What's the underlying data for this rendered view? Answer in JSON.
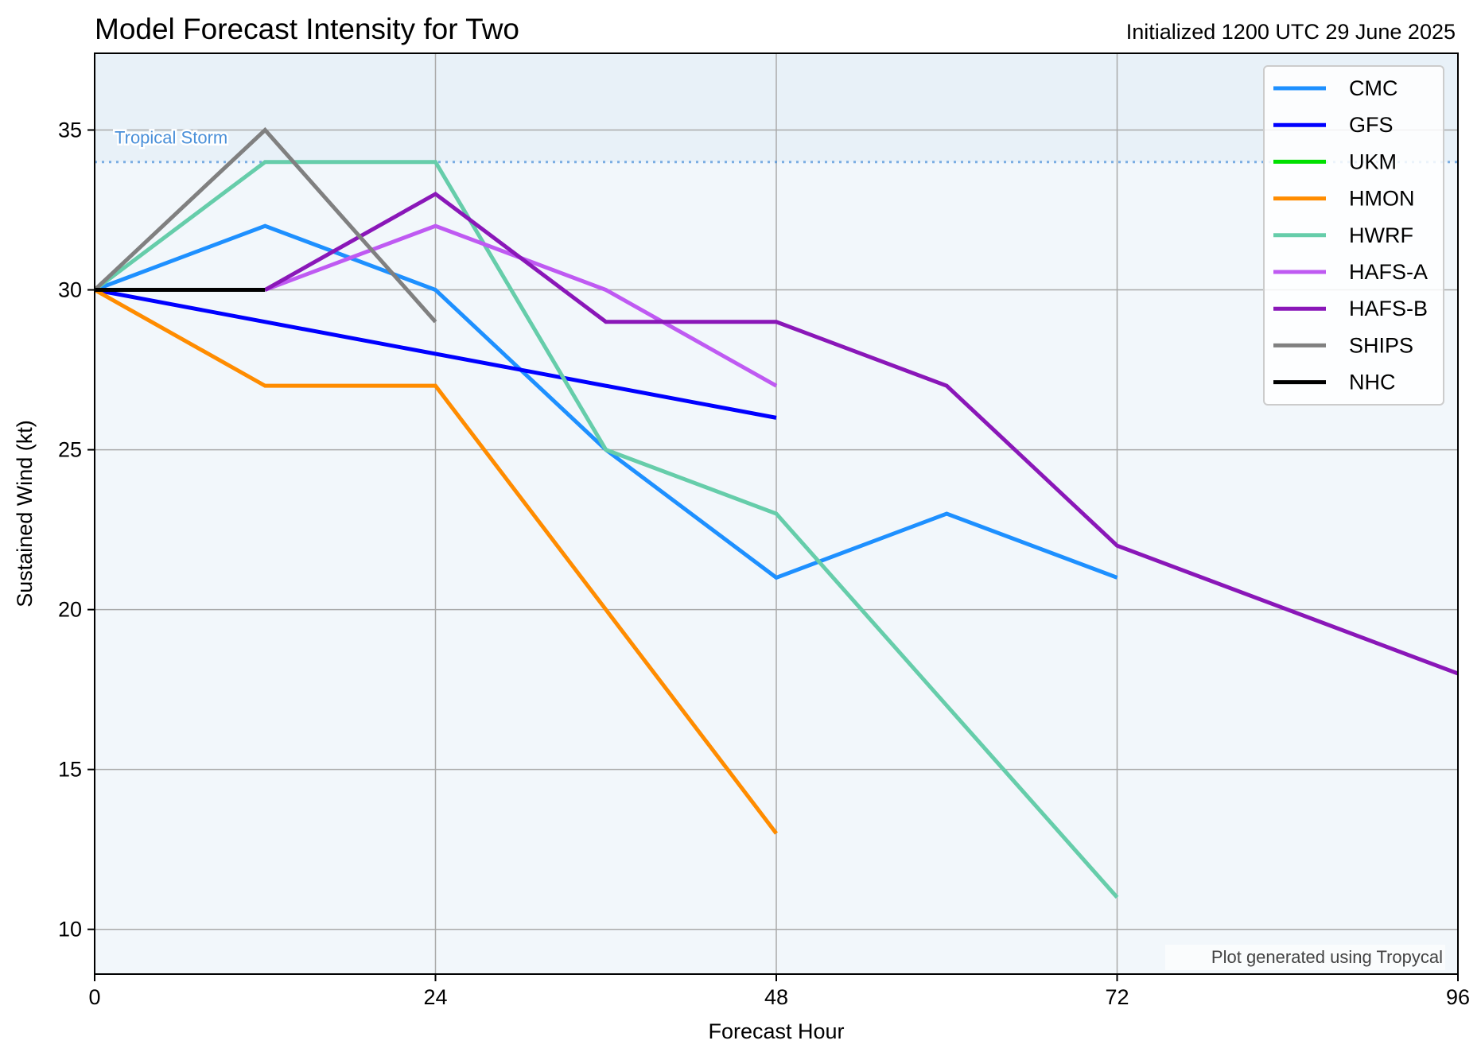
{
  "chart_data": {
    "type": "line",
    "title": "Model Forecast Intensity for Two",
    "subtitle": "Initialized 1200 UTC 29 June 2025",
    "xlabel": "Forecast Hour",
    "ylabel": "Sustained Wind (kt)",
    "xlim": [
      0,
      96
    ],
    "ylim": [
      8.6,
      37.4
    ],
    "xticks": [
      0,
      24,
      48,
      72,
      96
    ],
    "yticks": [
      10,
      15,
      20,
      25,
      30,
      35
    ],
    "grid": true,
    "legend_position": "top-right",
    "threshold": {
      "label": "Tropical Storm",
      "value": 34,
      "color": "#4a90d9"
    },
    "storm_band_start": 34,
    "annotation": "Plot generated using Tropycal",
    "series": [
      {
        "name": "CMC",
        "color": "#1e90ff",
        "x": [
          0,
          12,
          24,
          36,
          48,
          60,
          72
        ],
        "y": [
          30,
          32,
          30,
          25,
          21,
          23,
          21
        ]
      },
      {
        "name": "GFS",
        "color": "#0000ff",
        "x": [
          0,
          48
        ],
        "y": [
          30,
          26
        ]
      },
      {
        "name": "UKM",
        "color": "#00e000",
        "x": [],
        "y": []
      },
      {
        "name": "HMON",
        "color": "#ff8c00",
        "x": [
          0,
          12,
          24,
          36,
          48
        ],
        "y": [
          30,
          27,
          27,
          20,
          13
        ]
      },
      {
        "name": "HWRF",
        "color": "#66cdaa",
        "x": [
          0,
          12,
          24,
          36,
          48,
          60,
          72
        ],
        "y": [
          30,
          34,
          34,
          25,
          23,
          17,
          11
        ]
      },
      {
        "name": "HAFS-A",
        "color": "#bf5af2",
        "x": [
          12,
          24,
          36,
          48
        ],
        "y": [
          30,
          32,
          30,
          27
        ]
      },
      {
        "name": "HAFS-B",
        "color": "#8a17b8",
        "x": [
          12,
          24,
          36,
          48,
          60,
          72,
          96
        ],
        "y": [
          30,
          33,
          29,
          29,
          27,
          22,
          18
        ]
      },
      {
        "name": "SHIPS",
        "color": "#808080",
        "x": [
          0,
          12,
          24
        ],
        "y": [
          30,
          35,
          29
        ]
      },
      {
        "name": "NHC",
        "color": "#000000",
        "x": [
          0,
          12
        ],
        "y": [
          30,
          30
        ]
      }
    ]
  }
}
